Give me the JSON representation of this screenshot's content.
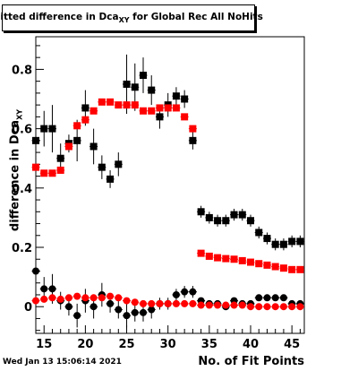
{
  "chart_data": {
    "type": "scatter",
    "title_prefix": "Fitted difference in Dca",
    "title_sub": "XY",
    "title_suffix": " for Global Rec All NoHits",
    "ylabel_prefix": "difference in Dca",
    "ylabel_sub": "XY",
    "xlabel": "No. of Fit Points",
    "xlim": [
      14,
      46.5
    ],
    "ylim": [
      -0.09,
      0.91
    ],
    "xticks": [
      15,
      20,
      25,
      30,
      35,
      40,
      45
    ],
    "yticks": [
      0,
      0.2,
      0.4,
      0.6,
      0.8
    ],
    "yticklabels": [
      "0",
      "0.2",
      "0.4",
      "0.6",
      "0.8"
    ],
    "series": [
      {
        "marker": "square",
        "color": "#000000",
        "x": [
          14,
          15,
          16,
          17,
          18,
          19,
          20,
          21,
          22,
          23,
          24,
          25,
          26,
          27,
          28,
          29,
          30,
          31,
          32,
          33,
          34,
          35,
          36,
          37,
          38,
          39,
          40,
          41,
          42,
          43,
          44,
          45,
          46
        ],
        "y": [
          0.56,
          0.6,
          0.6,
          0.5,
          0.55,
          0.56,
          0.67,
          0.54,
          0.47,
          0.43,
          0.48,
          0.75,
          0.74,
          0.78,
          0.73,
          0.64,
          0.68,
          0.71,
          0.7,
          0.56,
          0.32,
          0.3,
          0.29,
          0.29,
          0.31,
          0.31,
          0.29,
          0.25,
          0.23,
          0.21,
          0.21,
          0.22,
          0.22
        ],
        "err": [
          0.05,
          0.06,
          0.08,
          0.05,
          0.03,
          0.07,
          0.06,
          0.06,
          0.04,
          0.03,
          0.04,
          0.1,
          0.08,
          0.06,
          0.05,
          0.04,
          0.04,
          0.03,
          0.03,
          0.03,
          0.02,
          0.02,
          0.02,
          0.02,
          0.02,
          0.02,
          0.02,
          0.02,
          0.02,
          0.02,
          0.02,
          0.02,
          0.02
        ]
      },
      {
        "marker": "square",
        "color": "#ff0000",
        "x": [
          14,
          15,
          16,
          17,
          18,
          19,
          20,
          21,
          22,
          23,
          24,
          25,
          26,
          27,
          28,
          29,
          30,
          31,
          32,
          33,
          34,
          35,
          36,
          37,
          38,
          39,
          40,
          41,
          42,
          43,
          44,
          45,
          46
        ],
        "y": [
          0.47,
          0.45,
          0.45,
          0.46,
          0.54,
          0.61,
          0.63,
          0.66,
          0.69,
          0.69,
          0.68,
          0.68,
          0.68,
          0.66,
          0.66,
          0.67,
          0.67,
          0.67,
          0.64,
          0.6,
          0.18,
          0.17,
          0.165,
          0.162,
          0.16,
          0.155,
          0.15,
          0.145,
          0.14,
          0.135,
          0.13,
          0.125,
          0.125
        ],
        "err": [
          0.01,
          0.01,
          0.01,
          0.01,
          0.01,
          0.01,
          0.01,
          0.01,
          0.01,
          0.01,
          0.01,
          0.01,
          0.01,
          0.01,
          0.01,
          0.01,
          0.01,
          0.01,
          0.01,
          0.01,
          0.005,
          0.005,
          0.005,
          0.005,
          0.005,
          0.005,
          0.005,
          0.005,
          0.005,
          0.005,
          0.005,
          0.005,
          0.005
        ]
      },
      {
        "marker": "circle",
        "color": "#000000",
        "x": [
          14,
          15,
          16,
          17,
          18,
          19,
          20,
          21,
          22,
          23,
          24,
          25,
          26,
          27,
          28,
          29,
          30,
          31,
          32,
          33,
          34,
          35,
          36,
          37,
          38,
          39,
          40,
          41,
          42,
          43,
          44,
          45,
          46
        ],
        "y": [
          0.12,
          0.06,
          0.06,
          0.02,
          0.0,
          -0.03,
          0.02,
          0.0,
          0.04,
          0.01,
          -0.01,
          -0.03,
          -0.02,
          -0.02,
          -0.01,
          0.01,
          0.01,
          0.04,
          0.05,
          0.05,
          0.02,
          0.01,
          0.01,
          0.0,
          0.02,
          0.01,
          0.01,
          0.03,
          0.03,
          0.03,
          0.03,
          0.01,
          0.01
        ],
        "err": [
          0.04,
          0.04,
          0.05,
          0.03,
          0.03,
          0.04,
          0.04,
          0.04,
          0.04,
          0.03,
          0.03,
          0.04,
          0.03,
          0.03,
          0.03,
          0.02,
          0.02,
          0.02,
          0.02,
          0.02,
          0.01,
          0.01,
          0.01,
          0.01,
          0.01,
          0.01,
          0.01,
          0.01,
          0.01,
          0.01,
          0.01,
          0.01,
          0.01
        ]
      },
      {
        "marker": "circle",
        "color": "#ff0000",
        "x": [
          14,
          15,
          16,
          17,
          18,
          19,
          20,
          21,
          22,
          23,
          24,
          25,
          26,
          27,
          28,
          29,
          30,
          31,
          32,
          33,
          34,
          35,
          36,
          37,
          38,
          39,
          40,
          41,
          42,
          43,
          44,
          45,
          46
        ],
        "y": [
          0.02,
          0.025,
          0.03,
          0.025,
          0.03,
          0.035,
          0.03,
          0.03,
          0.03,
          0.035,
          0.03,
          0.02,
          0.015,
          0.01,
          0.01,
          0.01,
          0.01,
          0.01,
          0.01,
          0.01,
          0.005,
          0.005,
          0.005,
          0.005,
          0.005,
          0.005,
          0.0,
          0.0,
          0.0,
          0.0,
          0.0,
          0.0,
          0.0
        ],
        "err": [
          0.01,
          0.01,
          0.01,
          0.01,
          0.01,
          0.01,
          0.01,
          0.01,
          0.01,
          0.01,
          0.01,
          0.01,
          0.01,
          0.005,
          0.005,
          0.005,
          0.005,
          0.005,
          0.005,
          0.005,
          0.005,
          0.005,
          0.005,
          0.005,
          0.005,
          0.005,
          0.005,
          0.005,
          0.005,
          0.005,
          0.005,
          0.005,
          0.005
        ]
      }
    ]
  },
  "footer": {
    "timestamp": "Wed Jan 13 15:06:14 2021"
  }
}
